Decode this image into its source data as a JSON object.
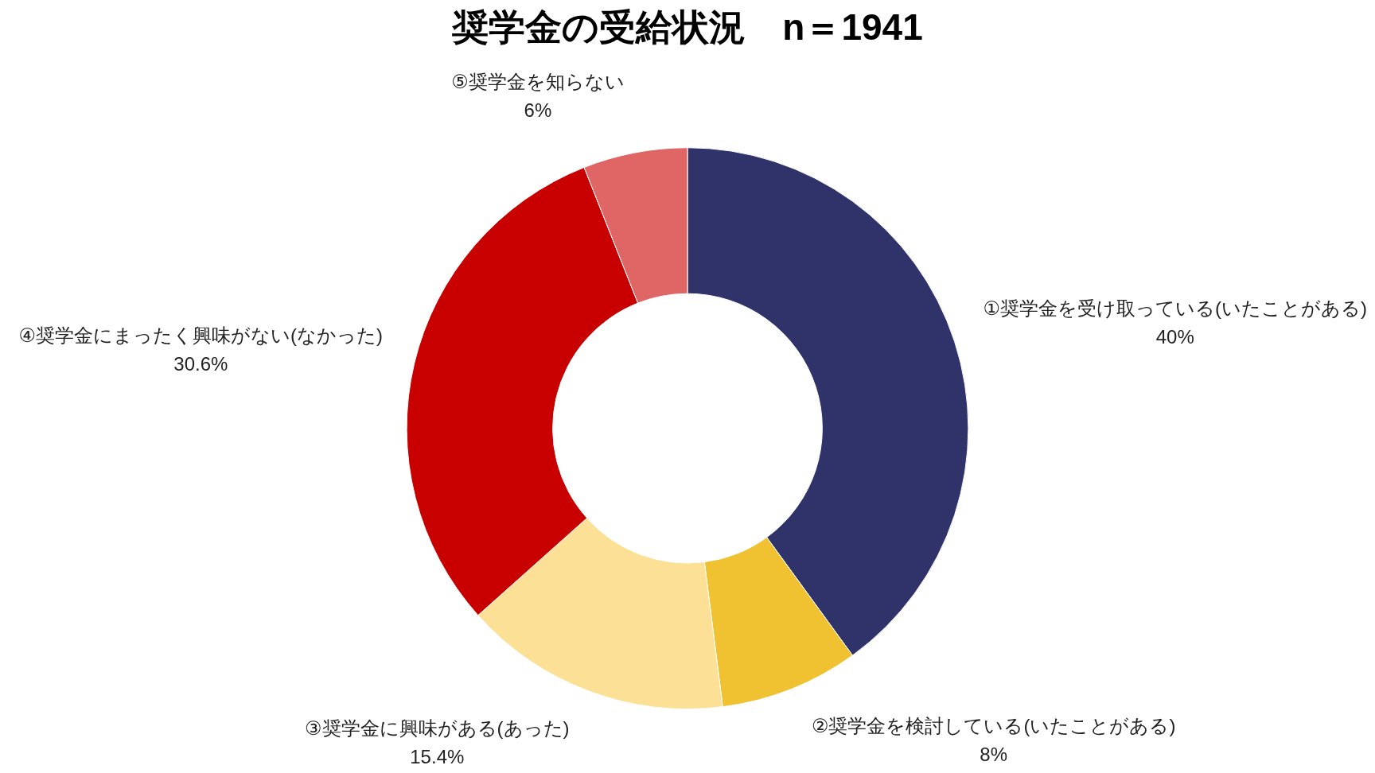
{
  "chart_data": {
    "type": "donut",
    "title": "奨学金の受給状況　n＝1941",
    "categories": [
      "①奨学金を受け取っている(いたことがある)",
      "②奨学金を検討している(いたことがある)",
      "③奨学金に興味がある(あった)",
      "④奨学金にまったく興味がない(なかった)",
      "⑤奨学金を知らない"
    ],
    "values": [
      40,
      8,
      15.4,
      30.6,
      6
    ],
    "value_labels": [
      "40%",
      "8%",
      "15.4%",
      "30.6%",
      "6%"
    ],
    "colors": [
      "#2f3369",
      "#f0c232",
      "#fbe096",
      "#c90000",
      "#e06666"
    ],
    "legend": false
  }
}
